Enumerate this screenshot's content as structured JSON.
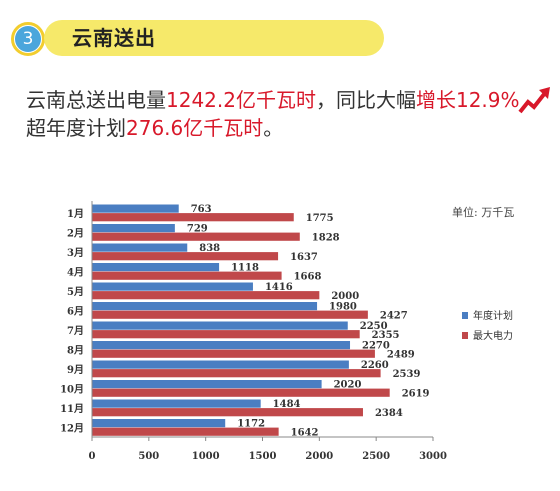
{
  "badge": {
    "number": "3"
  },
  "section": {
    "title": "云南送出"
  },
  "headline": {
    "line1_a": "云南总送出电量",
    "line1_b": "1242.2亿千瓦时",
    "line1_c": "，同比大幅",
    "line1_d": "增长12.9%",
    "line2_a": "超年度计划",
    "line2_b": "276.6亿千瓦时",
    "line2_c": "。"
  },
  "colors": {
    "highlight": "#d8182a",
    "header_bar": "#f6e96a",
    "badge": "#4ba6dc"
  },
  "icons": {
    "trend": "upward-trend-arrow-icon"
  },
  "chart_data": {
    "type": "bar",
    "orientation": "horizontal",
    "unit_label": "单位: 万千瓦",
    "categories": [
      "1月",
      "2月",
      "3月",
      "4月",
      "5月",
      "6月",
      "7月",
      "8月",
      "9月",
      "10月",
      "11月",
      "12月"
    ],
    "series": [
      {
        "name": "年度计划",
        "color": "#4a7ec2",
        "values": [
          763,
          729,
          838,
          1118,
          1416,
          1980,
          2250,
          2270,
          2260,
          2020,
          1484,
          1172
        ]
      },
      {
        "name": "最大电力",
        "color": "#c0484a",
        "values": [
          1775,
          1828,
          1637,
          1668,
          2000,
          2427,
          2355,
          2489,
          2539,
          2619,
          2384,
          1642
        ]
      }
    ],
    "xlim": [
      0,
      3000
    ],
    "xticks": [
      0,
      500,
      1000,
      1500,
      2000,
      2500,
      3000
    ],
    "legend_position": "right",
    "data_labels": true,
    "grid": false
  }
}
